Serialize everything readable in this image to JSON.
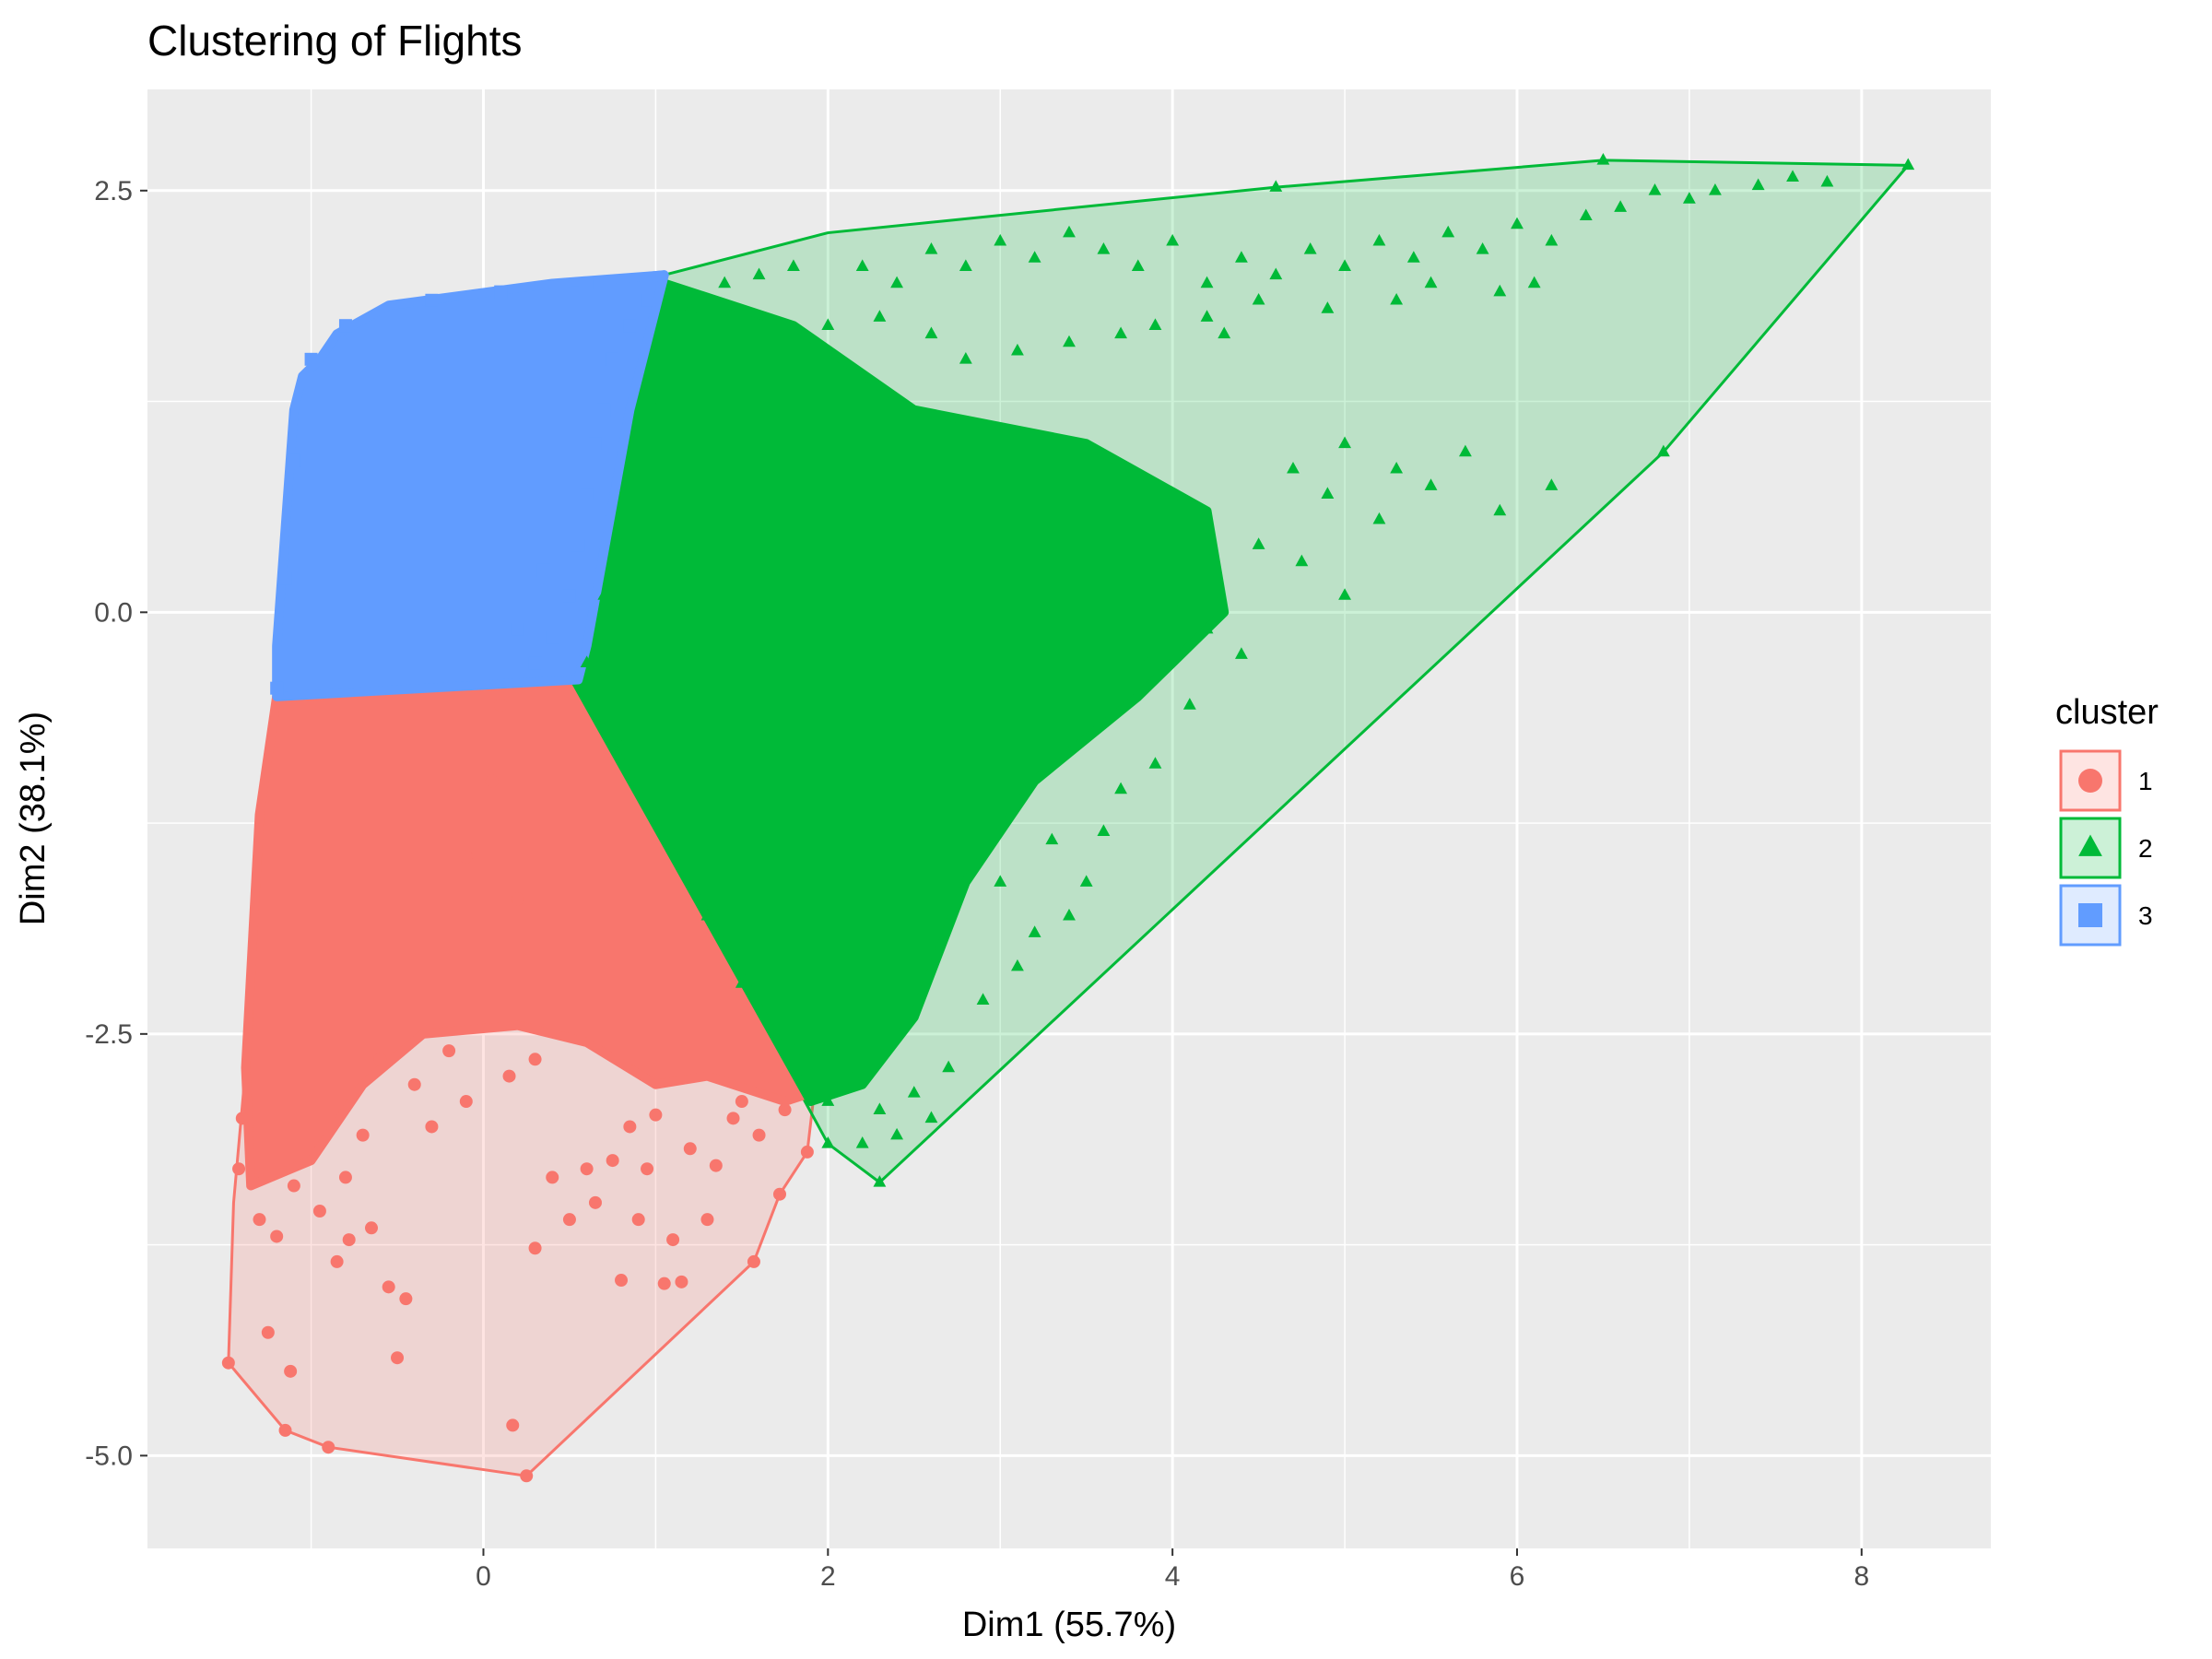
{
  "chart_data": {
    "type": "scatter",
    "title": "Clustering of Flights",
    "xlabel": "Dim1 (55.7%)",
    "ylabel": "Dim2 (38.1%)",
    "xlim": [
      -1.95,
      8.75
    ],
    "ylim": [
      -5.55,
      3.1
    ],
    "x_ticks": [
      0,
      2,
      4,
      6,
      8
    ],
    "x_tick_labels": [
      "0",
      "2",
      "4",
      "6",
      "8"
    ],
    "y_ticks": [
      -5.0,
      -2.5,
      0.0,
      2.5
    ],
    "y_tick_labels": [
      "-5.0",
      "-2.5",
      "0.0",
      "2.5"
    ],
    "grid": true,
    "background": "#EBEBEB",
    "legend": {
      "title": "cluster",
      "position": "right",
      "items": [
        {
          "label": "1",
          "shape": "circle"
        },
        {
          "label": "2",
          "shape": "triangle"
        },
        {
          "label": "3",
          "shape": "square"
        }
      ]
    },
    "series": [
      {
        "name": "1",
        "shape": "circle",
        "color": "#F8766D",
        "fill": "rgba(248,118,109,0.2)",
        "hull": [
          [
            -1.48,
            -4.45
          ],
          [
            -1.15,
            -4.85
          ],
          [
            -0.9,
            -4.95
          ],
          [
            0.25,
            -5.12
          ],
          [
            1.57,
            -3.85
          ],
          [
            1.72,
            -3.45
          ],
          [
            1.88,
            -3.2
          ],
          [
            1.92,
            -2.85
          ],
          [
            0.55,
            -0.4
          ],
          [
            0.2,
            -0.45
          ],
          [
            -1.2,
            -0.5
          ],
          [
            -1.28,
            -1.2
          ],
          [
            -1.38,
            -2.7
          ],
          [
            -1.45,
            -3.5
          ]
        ],
        "dense_region": [
          [
            -1.2,
            -0.5
          ],
          [
            0.55,
            -0.4
          ],
          [
            1.9,
            -2.85
          ],
          [
            1.75,
            -2.9
          ],
          [
            1.3,
            -2.75
          ],
          [
            1.0,
            -2.8
          ],
          [
            0.6,
            -2.55
          ],
          [
            0.2,
            -2.45
          ],
          [
            -0.35,
            -2.5
          ],
          [
            -0.7,
            -2.8
          ],
          [
            -1.0,
            -3.25
          ],
          [
            -1.35,
            -3.4
          ],
          [
            -1.38,
            -2.7
          ],
          [
            -1.3,
            -1.2
          ]
        ],
        "points": [
          [
            -1.48,
            -4.45
          ],
          [
            -1.15,
            -4.85
          ],
          [
            -0.9,
            -4.95
          ],
          [
            0.25,
            -5.12
          ],
          [
            1.57,
            -3.85
          ],
          [
            1.72,
            -3.45
          ],
          [
            1.88,
            -3.2
          ],
          [
            0.17,
            -4.82
          ],
          [
            -1.25,
            -4.27
          ],
          [
            -1.12,
            -4.5
          ],
          [
            -0.5,
            -4.42
          ],
          [
            -0.45,
            -4.07
          ],
          [
            -0.55,
            -4.0
          ],
          [
            -0.78,
            -3.72
          ],
          [
            -0.85,
            -3.85
          ],
          [
            -0.65,
            -3.65
          ],
          [
            0.3,
            -3.77
          ],
          [
            0.8,
            -3.96
          ],
          [
            1.05,
            -3.98
          ],
          [
            1.15,
            -3.97
          ],
          [
            1.3,
            -3.6
          ],
          [
            0.5,
            -3.6
          ],
          [
            0.65,
            -3.5
          ],
          [
            0.9,
            -3.6
          ],
          [
            1.1,
            -3.72
          ],
          [
            0.4,
            -3.35
          ],
          [
            0.6,
            -3.3
          ],
          [
            0.75,
            -3.25
          ],
          [
            0.95,
            -3.3
          ],
          [
            1.2,
            -3.18
          ],
          [
            1.45,
            -3.0
          ],
          [
            1.35,
            -3.28
          ],
          [
            -0.4,
            -2.8
          ],
          [
            -0.2,
            -2.6
          ],
          [
            -0.1,
            -2.9
          ],
          [
            0.15,
            -2.75
          ],
          [
            0.3,
            -2.65
          ],
          [
            -0.6,
            -2.65
          ],
          [
            -0.3,
            -3.05
          ],
          [
            -1.1,
            -3.4
          ],
          [
            -1.3,
            -3.6
          ],
          [
            -1.42,
            -3.3
          ],
          [
            -1.4,
            -3.0
          ],
          [
            -1.2,
            -3.7
          ],
          [
            -0.95,
            -3.55
          ],
          [
            -0.8,
            -3.35
          ],
          [
            -0.7,
            -3.1
          ],
          [
            0.1,
            -0.55
          ],
          [
            0.05,
            -1.0
          ],
          [
            -0.1,
            -1.45
          ],
          [
            0.2,
            -1.7
          ],
          [
            1.5,
            -2.9
          ],
          [
            1.65,
            -2.75
          ],
          [
            1.0,
            -2.98
          ],
          [
            0.85,
            -3.05
          ],
          [
            1.6,
            -3.1
          ],
          [
            1.75,
            -2.95
          ]
        ]
      },
      {
        "name": "2",
        "shape": "triangle",
        "color": "#00BA38",
        "fill": "rgba(0,186,56,0.2)",
        "hull": [
          [
            1.05,
            2.0
          ],
          [
            2.0,
            2.25
          ],
          [
            4.6,
            2.52
          ],
          [
            6.5,
            2.68
          ],
          [
            8.27,
            2.65
          ],
          [
            6.85,
            0.95
          ],
          [
            2.3,
            -3.38
          ],
          [
            2.0,
            -3.15
          ],
          [
            0.53,
            -0.4
          ],
          [
            0.62,
            -0.1
          ]
        ],
        "dense_region": [
          [
            1.05,
            1.95
          ],
          [
            1.8,
            1.7
          ],
          [
            2.5,
            1.2
          ],
          [
            3.5,
            1.0
          ],
          [
            4.2,
            0.6
          ],
          [
            4.3,
            0.0
          ],
          [
            3.8,
            -0.5
          ],
          [
            3.2,
            -1.0
          ],
          [
            2.8,
            -1.6
          ],
          [
            2.5,
            -2.4
          ],
          [
            2.2,
            -2.8
          ],
          [
            1.9,
            -2.9
          ],
          [
            0.53,
            -0.4
          ],
          [
            0.62,
            -0.1
          ]
        ],
        "points": [
          [
            6.5,
            2.68
          ],
          [
            8.27,
            2.65
          ],
          [
            6.85,
            0.95
          ],
          [
            2.3,
            -3.38
          ],
          [
            2.0,
            -3.15
          ],
          [
            4.6,
            2.52
          ],
          [
            7.8,
            2.55
          ],
          [
            7.6,
            2.58
          ],
          [
            7.4,
            2.53
          ],
          [
            7.15,
            2.5
          ],
          [
            7.0,
            2.45
          ],
          [
            6.8,
            2.5
          ],
          [
            6.6,
            2.4
          ],
          [
            6.4,
            2.35
          ],
          [
            6.2,
            2.2
          ],
          [
            6.0,
            2.3
          ],
          [
            5.8,
            2.15
          ],
          [
            5.6,
            2.25
          ],
          [
            5.4,
            2.1
          ],
          [
            5.2,
            2.2
          ],
          [
            5.0,
            2.05
          ],
          [
            4.8,
            2.15
          ],
          [
            4.6,
            2.0
          ],
          [
            4.4,
            2.1
          ],
          [
            4.2,
            1.95
          ],
          [
            4.0,
            2.2
          ],
          [
            3.8,
            2.05
          ],
          [
            3.6,
            2.15
          ],
          [
            3.4,
            2.25
          ],
          [
            3.2,
            2.1
          ],
          [
            3.0,
            2.2
          ],
          [
            2.8,
            2.05
          ],
          [
            2.6,
            2.15
          ],
          [
            2.4,
            1.95
          ],
          [
            2.2,
            2.05
          ],
          [
            6.1,
            1.95
          ],
          [
            5.9,
            1.9
          ],
          [
            5.5,
            1.95
          ],
          [
            5.3,
            1.85
          ],
          [
            4.9,
            1.8
          ],
          [
            4.5,
            1.85
          ],
          [
            4.2,
            1.75
          ],
          [
            3.9,
            1.7
          ],
          [
            3.7,
            1.65
          ],
          [
            3.4,
            1.6
          ],
          [
            3.1,
            1.55
          ],
          [
            2.8,
            1.5
          ],
          [
            2.6,
            1.65
          ],
          [
            2.3,
            1.75
          ],
          [
            2.0,
            1.7
          ],
          [
            4.3,
            1.65
          ],
          [
            5.7,
            0.95
          ],
          [
            5.5,
            0.75
          ],
          [
            5.2,
            0.55
          ],
          [
            4.9,
            0.7
          ],
          [
            5.9,
            0.6
          ],
          [
            6.2,
            0.75
          ],
          [
            5.3,
            0.85
          ],
          [
            5.0,
            1.0
          ],
          [
            4.7,
            0.85
          ],
          [
            4.5,
            0.4
          ],
          [
            4.75,
            0.3
          ],
          [
            5.0,
            0.1
          ],
          [
            4.4,
            -0.25
          ],
          [
            4.1,
            -0.55
          ],
          [
            3.9,
            -0.9
          ],
          [
            3.6,
            -1.3
          ],
          [
            3.4,
            -1.8
          ],
          [
            3.1,
            -2.1
          ],
          [
            2.9,
            -2.3
          ],
          [
            2.7,
            -2.7
          ],
          [
            2.6,
            -3.0
          ],
          [
            2.4,
            -3.1
          ],
          [
            2.5,
            -2.85
          ],
          [
            2.3,
            -2.95
          ],
          [
            2.2,
            -3.15
          ],
          [
            2.15,
            -2.75
          ],
          [
            3.0,
            -1.6
          ],
          [
            3.3,
            -1.35
          ],
          [
            3.7,
            -1.05
          ],
          [
            3.5,
            -1.6
          ],
          [
            3.2,
            -1.9
          ],
          [
            4.2,
            -0.1
          ],
          [
            4.0,
            0.05
          ],
          [
            3.85,
            -0.3
          ],
          [
            2.0,
            -2.9
          ],
          [
            1.8,
            -2.6
          ],
          [
            1.5,
            -2.2
          ],
          [
            1.3,
            -1.8
          ],
          [
            1.0,
            -1.2
          ],
          [
            0.8,
            -0.8
          ],
          [
            0.6,
            -0.3
          ],
          [
            1.2,
            1.8
          ],
          [
            1.4,
            1.95
          ],
          [
            1.6,
            2.0
          ],
          [
            1.8,
            2.05
          ],
          [
            1.1,
            1.6
          ],
          [
            1.0,
            1.2
          ],
          [
            0.9,
            0.8
          ],
          [
            0.8,
            0.4
          ],
          [
            0.7,
            0.1
          ]
        ]
      },
      {
        "name": "3",
        "shape": "square",
        "color": "#619CFF",
        "fill": "rgba(97,156,255,0.2)",
        "hull": [
          [
            -0.85,
            1.65
          ],
          [
            -0.55,
            1.82
          ],
          [
            0.4,
            1.95
          ],
          [
            1.05,
            2.02
          ],
          [
            0.85,
            1.2
          ],
          [
            0.6,
            -0.2
          ],
          [
            0.55,
            -0.4
          ],
          [
            -1.2,
            -0.5
          ],
          [
            -1.2,
            -0.2
          ],
          [
            -1.15,
            0.5
          ],
          [
            -1.1,
            1.2
          ],
          [
            -1.05,
            1.4
          ],
          [
            -0.95,
            1.5
          ]
        ],
        "dense_region": [
          [
            -0.85,
            1.65
          ],
          [
            -0.55,
            1.82
          ],
          [
            0.4,
            1.95
          ],
          [
            1.05,
            2.0
          ],
          [
            0.85,
            1.2
          ],
          [
            0.6,
            -0.2
          ],
          [
            0.55,
            -0.4
          ],
          [
            -1.2,
            -0.5
          ],
          [
            -1.2,
            -0.2
          ],
          [
            -1.15,
            0.5
          ],
          [
            -1.1,
            1.2
          ],
          [
            -1.05,
            1.4
          ],
          [
            -0.95,
            1.5
          ]
        ],
        "points": [
          [
            0.3,
            -0.3
          ],
          [
            0.4,
            -0.15
          ],
          [
            0.5,
            0.1
          ],
          [
            0.55,
            0.4
          ],
          [
            0.6,
            0.7
          ],
          [
            0.65,
            1.0
          ],
          [
            0.7,
            1.2
          ],
          [
            0.75,
            1.5
          ],
          [
            0.85,
            1.7
          ],
          [
            0.95,
            1.85
          ],
          [
            0.2,
            -0.1
          ],
          [
            0.35,
            0.25
          ],
          [
            -1.2,
            -0.45
          ],
          [
            -1.15,
            0.2
          ],
          [
            -1.1,
            0.9
          ],
          [
            -1.0,
            1.5
          ],
          [
            -0.8,
            1.7
          ],
          [
            -0.3,
            1.85
          ],
          [
            0.1,
            1.9
          ],
          [
            0.6,
            1.95
          ]
        ]
      }
    ]
  }
}
